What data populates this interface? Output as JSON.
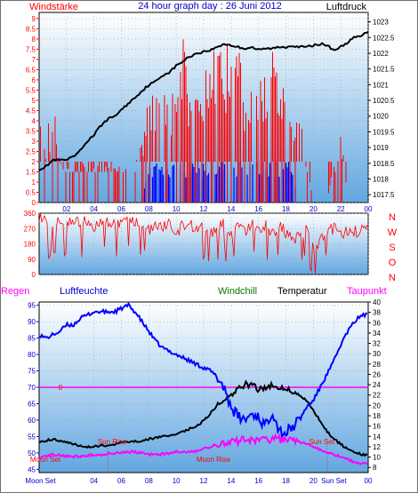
{
  "chart_data": [
    {
      "type": "line",
      "title": "24 hour graph day : 26 Juni 2012",
      "y_left_label": "Windstärke",
      "y_right_label": "Luftdruck",
      "x_ticks": [
        "02",
        "04",
        "06",
        "08",
        "10",
        "12",
        "14",
        "16",
        "18",
        "20",
        "22",
        "00"
      ],
      "y_left_ticks": [
        "0",
        "0.5",
        "1",
        "1.5",
        "2",
        "2.5",
        "3",
        "3.5",
        "4",
        "4.5",
        "5",
        "5.5",
        "6",
        "6.5",
        "7",
        "7.5",
        "8",
        "8.5",
        "9"
      ],
      "y_right_ticks": [
        "1017.5",
        "1018",
        "1018.5",
        "1019",
        "1019.5",
        "1020",
        "1020.5",
        "1021",
        "1021.5",
        "1022",
        "1022.5",
        "1023"
      ],
      "ylim_left": [
        0,
        9.3
      ],
      "ylim_right": [
        1017.25,
        1023.3
      ],
      "pressure_hpa": {
        "x_hours": [
          0,
          0.5,
          1,
          1.5,
          2,
          2.5,
          3,
          3.5,
          4,
          4.5,
          5,
          5.5,
          6,
          6.5,
          7,
          7.5,
          8,
          8.5,
          9,
          9.5,
          10,
          10.5,
          11,
          11.5,
          12,
          12.5,
          13,
          13.5,
          14,
          14.5,
          15,
          15.5,
          16,
          16.5,
          17,
          17.5,
          18,
          18.5,
          19,
          19.5,
          20,
          20.5,
          21,
          21.5,
          22,
          22.5,
          23,
          23.5,
          24
        ],
        "values": [
          1018.3,
          1018.4,
          1018.6,
          1018.6,
          1018.6,
          1018.7,
          1018.9,
          1019.2,
          1019.4,
          1019.7,
          1019.9,
          1020.0,
          1020.2,
          1020.4,
          1020.6,
          1020.8,
          1021.0,
          1021.1,
          1021.3,
          1021.4,
          1021.6,
          1021.75,
          1021.9,
          1022.0,
          1022.05,
          1022.1,
          1022.2,
          1022.3,
          1022.25,
          1022.2,
          1022.15,
          1022.2,
          1022.1,
          1022.15,
          1022.15,
          1022.2,
          1022.2,
          1022.25,
          1022.2,
          1022.2,
          1022.25,
          1022.3,
          1022.25,
          1022.1,
          1022.2,
          1022.35,
          1022.5,
          1022.55,
          1022.7
        ]
      },
      "wind_gust_beaufort_envelope": {
        "x_hours": [
          0,
          0.5,
          1,
          1.5,
          2,
          2.5,
          3,
          3.5,
          4,
          4.5,
          5,
          5.5,
          6,
          6.5,
          7,
          7.5,
          8,
          8.5,
          9,
          9.5,
          10,
          10.5,
          11,
          11.5,
          12,
          12.5,
          13,
          13.5,
          14,
          14.5,
          15,
          15.5,
          16,
          16.5,
          17,
          17.5,
          18,
          18.5,
          19,
          19.5,
          20,
          20.5,
          21,
          21.5,
          22,
          22.5,
          23,
          23.5,
          24
        ],
        "values": [
          4,
          3,
          5.5,
          2,
          2,
          2,
          2,
          2,
          2,
          2,
          2,
          2,
          2,
          2,
          2,
          3,
          5.5,
          5.5,
          5.5,
          6,
          5.5,
          9,
          5.5,
          6,
          6,
          7.5,
          9,
          7,
          9,
          9,
          6,
          5.5,
          6,
          6.5,
          7.5,
          6,
          5.5,
          5,
          5,
          2,
          0,
          0,
          0,
          2,
          4,
          0,
          0,
          0,
          0
        ]
      },
      "wind_mean_beaufort_envelope": {
        "x_hours": [
          0,
          0.5,
          1,
          1.5,
          2,
          2.5,
          3,
          3.5,
          4,
          4.5,
          5,
          5.5,
          6,
          6.5,
          7,
          7.5,
          8,
          8.5,
          9,
          9.5,
          10,
          10.5,
          11,
          11.5,
          12,
          12.5,
          13,
          13.5,
          14,
          14.5,
          15,
          15.5,
          16,
          16.5,
          17,
          17.5,
          18,
          18.5,
          19,
          19.5,
          20,
          20.5,
          21,
          21.5,
          22,
          22.5,
          23,
          23.5,
          24
        ],
        "values": [
          0,
          0,
          0,
          0,
          0,
          0,
          0,
          0,
          0,
          0,
          0,
          0,
          0,
          0,
          0,
          0,
          2,
          2,
          2,
          2,
          2,
          2,
          2,
          2,
          2,
          2,
          2,
          2,
          2,
          2,
          2,
          2,
          2,
          2,
          2,
          2,
          2,
          2,
          0,
          0,
          0,
          0,
          0,
          0,
          0,
          0,
          0,
          0,
          0
        ]
      }
    },
    {
      "type": "scatter",
      "y_right_label": [
        "N",
        "W",
        "S",
        "O",
        "N"
      ],
      "y_ticks": [
        "0",
        "90",
        "180",
        "270",
        "360"
      ],
      "ylim": [
        0,
        360
      ],
      "wind_direction_deg": {
        "x_hours": [
          0,
          0.5,
          1,
          1.5,
          2,
          2.5,
          3,
          3.5,
          4,
          4.5,
          5,
          5.5,
          6,
          6.5,
          7,
          7.5,
          8,
          8.5,
          9,
          9.5,
          10,
          10.5,
          11,
          11.5,
          12,
          12.5,
          13,
          13.5,
          14,
          14.5,
          15,
          15.5,
          16,
          16.5,
          17,
          17.5,
          18,
          18.5,
          19,
          19.5,
          20,
          20.5,
          21,
          21.5,
          22,
          22.5,
          23,
          23.5,
          24
        ],
        "values": [
          340,
          300,
          270,
          320,
          290,
          320,
          300,
          310,
          280,
          330,
          300,
          290,
          320,
          310,
          300,
          290,
          260,
          300,
          280,
          310,
          230,
          290,
          300,
          260,
          300,
          240,
          280,
          300,
          220,
          290,
          250,
          310,
          260,
          290,
          230,
          300,
          250,
          200,
          220,
          260,
          150,
          190,
          250,
          270,
          240,
          250,
          250,
          260,
          260
        ]
      }
    },
    {
      "type": "line",
      "header_labels": [
        "Regen",
        "Luftfeuchte",
        "Windchill",
        "Temperatur",
        "Taupunkt"
      ],
      "x_ticks": [
        "Moon Set",
        "04",
        "06",
        "08",
        "10",
        "12",
        "14",
        "16",
        "18",
        "20",
        "Sun Set",
        "00"
      ],
      "y_left_ticks": [
        "45",
        "50",
        "55",
        "60",
        "65",
        "70",
        "75",
        "80",
        "85",
        "90",
        "95"
      ],
      "y_right_ticks": [
        "8",
        "10",
        "12",
        "14",
        "16",
        "18",
        "20",
        "22",
        "24",
        "26",
        "28",
        "30",
        "32",
        "34",
        "36",
        "38",
        "40"
      ],
      "ylim_left": [
        44,
        96
      ],
      "ylim_right": [
        7,
        40
      ],
      "annotations": [
        {
          "text": "Sun Rise",
          "x_hour": 5
        },
        {
          "text": "Sun Set",
          "x_hour": 21
        },
        {
          "text": "Moon Set",
          "x_hour": 0
        },
        {
          "text": "Moon Rise",
          "x_hour": 12
        },
        {
          "text": "0",
          "y_value": 70
        }
      ],
      "rain_line_value": 70,
      "humidity_pct": {
        "x_hours": [
          0,
          0.5,
          1,
          1.5,
          2,
          2.5,
          3,
          3.5,
          4,
          4.5,
          5,
          5.5,
          6,
          6.5,
          7,
          7.5,
          8,
          8.5,
          9,
          9.5,
          10,
          10.5,
          11,
          11.5,
          12,
          12.5,
          13,
          13.5,
          14,
          14.5,
          15,
          15.5,
          16,
          16.5,
          17,
          17.5,
          18,
          18.5,
          19,
          19.5,
          20,
          20.5,
          21,
          21.5,
          22,
          22.5,
          23,
          23.5,
          24
        ],
        "values": [
          86,
          85,
          86,
          87,
          89,
          89,
          91,
          92,
          93,
          93,
          93,
          93,
          94,
          95,
          93,
          90,
          87,
          84,
          82,
          81,
          80,
          79,
          78,
          77,
          76,
          75,
          73,
          70,
          64,
          61,
          60,
          62,
          61,
          58,
          63,
          57,
          56,
          58,
          60,
          64,
          66,
          70,
          74,
          78,
          83,
          87,
          90,
          92,
          92
        ]
      },
      "temperature_c": {
        "x_hours": [
          0,
          0.5,
          1,
          1.5,
          2,
          2.5,
          3,
          3.5,
          4,
          4.5,
          5,
          5.5,
          6,
          6.5,
          7,
          7.5,
          8,
          8.5,
          9,
          9.5,
          10,
          10.5,
          11,
          11.5,
          12,
          12.5,
          13,
          13.5,
          14,
          14.5,
          15,
          15.5,
          16,
          16.5,
          17,
          17.5,
          18,
          18.5,
          19,
          19.5,
          20,
          20.5,
          21,
          21.5,
          22,
          22.5,
          23,
          23.5,
          24
        ],
        "values": [
          13,
          13.2,
          13.5,
          13.2,
          13,
          12.5,
          12.2,
          12,
          12,
          12.2,
          12.3,
          12.5,
          12.8,
          13,
          13,
          13.2,
          13.5,
          13.7,
          14,
          14.2,
          14.5,
          15,
          15.5,
          16,
          17,
          18.5,
          20,
          21,
          22,
          23,
          24,
          24,
          23,
          23.5,
          24,
          23.5,
          23.5,
          22.5,
          22,
          21,
          19,
          17,
          15,
          13.5,
          12.5,
          11.5,
          11,
          10.5,
          10.3
        ]
      },
      "dewpoint_c": {
        "x_hours": [
          0,
          0.5,
          1,
          1.5,
          2,
          2.5,
          3,
          3.5,
          4,
          4.5,
          5,
          5.5,
          6,
          6.5,
          7,
          7.5,
          8,
          8.5,
          9,
          9.5,
          10,
          10.5,
          11,
          11.5,
          12,
          12.5,
          13,
          13.5,
          14,
          14.5,
          15,
          15.5,
          16,
          16.5,
          17,
          17.5,
          18,
          18.5,
          19,
          19.5,
          20,
          20.5,
          21,
          21.5,
          22,
          22.5,
          23,
          23.5,
          24
        ],
        "values": [
          10,
          10.2,
          10.5,
          10.3,
          10.2,
          10.1,
          10.2,
          10.3,
          10.5,
          10.5,
          10.6,
          10.8,
          11,
          11,
          11,
          10.8,
          10.5,
          10.5,
          10.6,
          10.8,
          11,
          11,
          11,
          11.2,
          11.5,
          12,
          12.5,
          12.5,
          13,
          13,
          13.5,
          13.5,
          13.2,
          13.4,
          13.5,
          13.4,
          13.5,
          13.2,
          13,
          12.5,
          12,
          11.5,
          11,
          10.5,
          10,
          9.5,
          9,
          8.8,
          8.8
        ]
      }
    }
  ],
  "colors": {
    "panel_top": "#ffffff",
    "panel_bottom": "#62a7e1",
    "red": "#ff0000",
    "blue": "#0000ff",
    "black": "#000000",
    "magenta": "#ff00ff",
    "green": "#007a00",
    "title_blue": "#0000cc"
  }
}
